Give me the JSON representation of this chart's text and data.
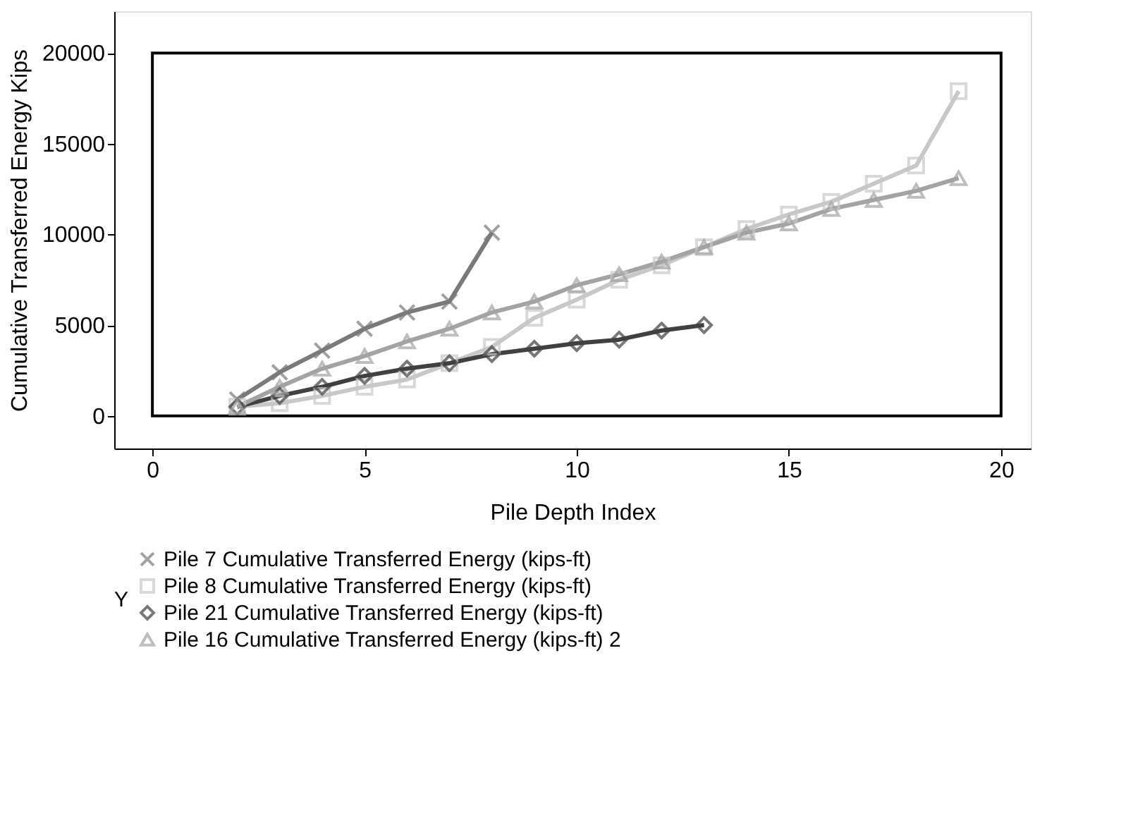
{
  "chart_data": {
    "type": "line",
    "xlabel": "Pile Depth Index",
    "ylabel": "Cumulative Transferred Energy Kips",
    "legend_title": "Y",
    "legend": "bottom",
    "grid": false,
    "xlim": [
      -0.9,
      20.7
    ],
    "ylim": [
      -1800,
      22300
    ],
    "xticks": [
      0,
      5,
      10,
      15,
      20
    ],
    "yticks": [
      0,
      5000,
      10000,
      15000,
      20000
    ],
    "series": [
      {
        "name": "Pile 7 Cumulative Transferred Energy (kips-ft)",
        "color": "#7a7a7a",
        "marker": "cross",
        "x": [
          2,
          3,
          4,
          5,
          6,
          7,
          8
        ],
        "values": [
          900,
          2400,
          3600,
          4800,
          5700,
          6300,
          10100
        ]
      },
      {
        "name": "Pile 8 Cumulative Transferred Energy (kips-ft)",
        "color": "#c8c8c8",
        "marker": "square",
        "x": [
          2,
          3,
          4,
          5,
          6,
          7,
          8,
          9,
          10,
          11,
          12,
          13,
          14,
          15,
          16,
          17,
          18,
          19
        ],
        "values": [
          500,
          700,
          1100,
          1600,
          2000,
          2900,
          3800,
          5400,
          6400,
          7500,
          8300,
          9300,
          10300,
          11100,
          11800,
          12800,
          13800,
          17900
        ]
      },
      {
        "name": "Pile 21 Cumulative Transferred Energy (kips-ft)",
        "color": "#404040",
        "marker": "diamond",
        "x": [
          2,
          3,
          4,
          5,
          6,
          7,
          8,
          9,
          10,
          11,
          12,
          13
        ],
        "values": [
          500,
          1100,
          1600,
          2200,
          2600,
          2900,
          3400,
          3700,
          4000,
          4200,
          4700,
          5000
        ]
      },
      {
        "name": "Pile 16 Cumulative Transferred Energy (kips-ft) 2",
        "color": "#a3a3a3",
        "marker": "triangle",
        "x": [
          2,
          3,
          4,
          5,
          6,
          7,
          8,
          9,
          10,
          11,
          12,
          13,
          14,
          15,
          16,
          17,
          18,
          19
        ],
        "values": [
          500,
          1600,
          2600,
          3300,
          4100,
          4800,
          5700,
          6300,
          7200,
          7800,
          8500,
          9300,
          10100,
          10600,
          11400,
          11900,
          12400,
          13100
        ]
      }
    ]
  }
}
